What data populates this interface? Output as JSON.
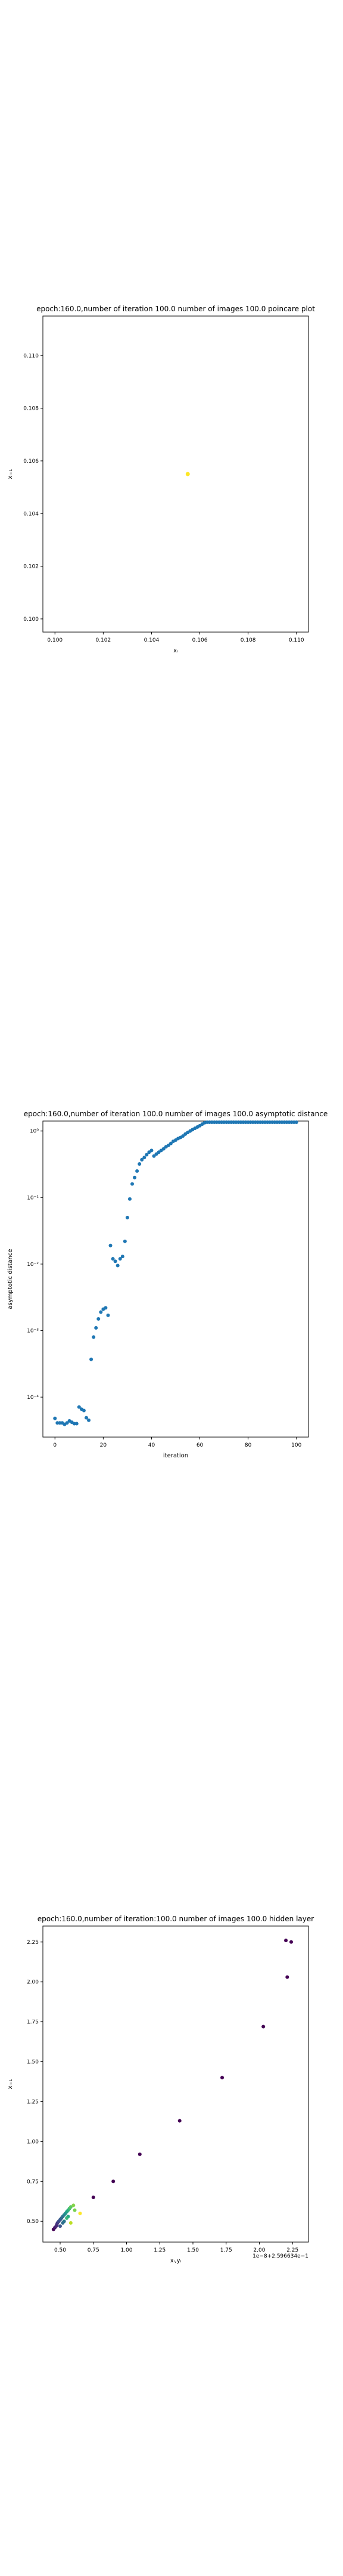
{
  "chart_data": [
    {
      "type": "scatter",
      "title": "epoch:160.0,number of iteration 100.0 number of images 100.0 poincare plot",
      "xlabel": "xᵢ",
      "ylabel": "xᵢ₊₁",
      "xlim": [
        0.0995,
        0.1105
      ],
      "ylim": [
        0.0995,
        0.1115
      ],
      "xticks": [
        0.1,
        0.102,
        0.104,
        0.106,
        0.108,
        0.11
      ],
      "xtick_labels": [
        "0.100",
        "0.102",
        "0.104",
        "0.106",
        "0.108",
        "0.110"
      ],
      "yticks": [
        0.1,
        0.102,
        0.104,
        0.106,
        0.108,
        0.11
      ],
      "ytick_labels": [
        "0.100",
        "0.102",
        "0.104",
        "0.106",
        "0.108",
        "0.110"
      ],
      "grid": false,
      "points": [
        {
          "x": 0.1055,
          "y": 0.1055,
          "color": "#fde725"
        }
      ]
    },
    {
      "type": "scatter",
      "title": "epoch:160.0,number of iteration 100.0  number of images 100.0 asymptotic distance",
      "xlabel": "iteration",
      "ylabel": "asymptotic distance",
      "yscale": "log",
      "xlim": [
        -5,
        105
      ],
      "ylim_log10": [
        -4.6,
        0.15
      ],
      "xticks": [
        0,
        20,
        40,
        60,
        80,
        100
      ],
      "xtick_labels": [
        "0",
        "20",
        "40",
        "60",
        "80",
        "100"
      ],
      "yticks_log10": [
        -4,
        -3,
        -2,
        -1,
        0
      ],
      "ytick_labels": [
        "10⁻⁴",
        "10⁻³",
        "10⁻²",
        "10⁻¹",
        "10⁰"
      ],
      "grid": false,
      "color": "#1f77b4",
      "x": [
        0,
        1,
        2,
        3,
        4,
        5,
        6,
        7,
        8,
        9,
        10,
        11,
        12,
        13,
        14,
        15,
        16,
        17,
        18,
        19,
        20,
        21,
        22,
        23,
        24,
        25,
        26,
        27,
        28,
        29,
        30,
        31,
        32,
        33,
        34,
        35,
        36,
        37,
        38,
        39,
        40,
        41,
        42,
        43,
        44,
        45,
        46,
        47,
        48,
        49,
        50,
        51,
        52,
        53,
        54,
        55,
        56,
        57,
        58,
        59,
        60,
        61,
        62,
        63,
        64,
        65,
        66,
        67,
        68,
        69,
        70,
        71,
        72,
        73,
        74,
        75,
        76,
        77,
        78,
        79,
        80,
        81,
        82,
        83,
        84,
        85,
        86,
        87,
        88,
        89,
        90,
        91,
        92,
        93,
        94,
        95,
        96,
        97,
        98,
        99,
        100
      ],
      "y": [
        4.8e-05,
        4.1e-05,
        4.1e-05,
        4.1e-05,
        3.9e-05,
        4.1e-05,
        4.4e-05,
        4.2e-05,
        4e-05,
        4e-05,
        7.1e-05,
        6.6e-05,
        6.3e-05,
        4.9e-05,
        4.5e-05,
        0.00037,
        0.0008,
        0.0011,
        0.0015,
        0.0019,
        0.0021,
        0.0022,
        0.0017,
        0.019,
        0.012,
        0.011,
        0.0095,
        0.012,
        0.013,
        0.022,
        0.05,
        0.095,
        0.16,
        0.2,
        0.25,
        0.32,
        0.37,
        0.4,
        0.44,
        0.48,
        0.51,
        0.42,
        0.45,
        0.48,
        0.51,
        0.54,
        0.58,
        0.61,
        0.65,
        0.7,
        0.73,
        0.77,
        0.8,
        0.84,
        0.9,
        0.95,
        1.0,
        1.05,
        1.1,
        1.15,
        1.2,
        1.27,
        1.33,
        1.38,
        1.42,
        1.46,
        1.5,
        1.54,
        1.58,
        1.61,
        1.64,
        1.66,
        1.68,
        1.69,
        1.7,
        1.72,
        1.78,
        1.85,
        1.93,
        2.02,
        2.12,
        2.23,
        2.35,
        2.48,
        2.62,
        2.77,
        2.93,
        3.1,
        3.28,
        3.47,
        3.66,
        3.86,
        4.07,
        4.29,
        4.52,
        4.75,
        4.99,
        5.24,
        5.5,
        5.77,
        6.05
      ]
    },
    {
      "type": "scatter",
      "title": "epoch:160.0,number of iteration:100.0  number of images 100.0 hidden layer",
      "xlabel": "xᵢ,yᵢ",
      "ylabel": "xᵢ₊₁",
      "xlim": [
        0.37,
        2.37
      ],
      "ylim": [
        0.37,
        2.35
      ],
      "xticks": [
        0.5,
        0.75,
        1.0,
        1.25,
        1.5,
        1.75,
        2.0,
        2.25
      ],
      "xtick_labels": [
        "0.50",
        "0.75",
        "1.00",
        "1.25",
        "1.50",
        "1.75",
        "2.00",
        "2.25"
      ],
      "yticks": [
        0.5,
        0.75,
        1.0,
        1.25,
        1.5,
        1.75,
        2.0,
        2.25
      ],
      "ytick_labels": [
        "0.50",
        "0.75",
        "1.00",
        "1.25",
        "1.50",
        "1.75",
        "2.00",
        "2.25"
      ],
      "x_offset_text": "1e−8+2.596634e−1",
      "grid": false,
      "points": [
        {
          "x": 0.45,
          "y": 0.45,
          "color": "#440154"
        },
        {
          "x": 0.46,
          "y": 0.46,
          "color": "#48186a"
        },
        {
          "x": 0.47,
          "y": 0.47,
          "color": "#482878"
        },
        {
          "x": 0.475,
          "y": 0.48,
          "color": "#472c7a"
        },
        {
          "x": 0.48,
          "y": 0.49,
          "color": "#443983"
        },
        {
          "x": 0.49,
          "y": 0.5,
          "color": "#3e4989"
        },
        {
          "x": 0.5,
          "y": 0.51,
          "color": "#38588c"
        },
        {
          "x": 0.51,
          "y": 0.52,
          "color": "#31688e"
        },
        {
          "x": 0.52,
          "y": 0.53,
          "color": "#2c728e"
        },
        {
          "x": 0.53,
          "y": 0.54,
          "color": "#26828e"
        },
        {
          "x": 0.54,
          "y": 0.55,
          "color": "#21918c"
        },
        {
          "x": 0.55,
          "y": 0.56,
          "color": "#1fa088"
        },
        {
          "x": 0.56,
          "y": 0.57,
          "color": "#28ae80"
        },
        {
          "x": 0.57,
          "y": 0.58,
          "color": "#3fbc73"
        },
        {
          "x": 0.58,
          "y": 0.59,
          "color": "#5ec962"
        },
        {
          "x": 0.6,
          "y": 0.6,
          "color": "#84d44b"
        },
        {
          "x": 0.5,
          "y": 0.47,
          "color": "#3b528b"
        },
        {
          "x": 0.53,
          "y": 0.5,
          "color": "#2a788e"
        },
        {
          "x": 0.56,
          "y": 0.53,
          "color": "#22a884"
        },
        {
          "x": 0.61,
          "y": 0.57,
          "color": "#7ad151"
        },
        {
          "x": 0.65,
          "y": 0.55,
          "color": "#fde725"
        },
        {
          "x": 0.58,
          "y": 0.49,
          "color": "#bddf26"
        },
        {
          "x": 0.55,
          "y": 0.52,
          "color": "#35b779"
        },
        {
          "x": 0.52,
          "y": 0.49,
          "color": "#2e6f8e"
        },
        {
          "x": 0.75,
          "y": 0.65,
          "color": "#440154"
        },
        {
          "x": 0.9,
          "y": 0.75,
          "color": "#440154"
        },
        {
          "x": 1.1,
          "y": 0.92,
          "color": "#440154"
        },
        {
          "x": 1.4,
          "y": 1.13,
          "color": "#440154"
        },
        {
          "x": 1.72,
          "y": 1.4,
          "color": "#440154"
        },
        {
          "x": 2.03,
          "y": 1.72,
          "color": "#440154"
        },
        {
          "x": 2.21,
          "y": 2.03,
          "color": "#440154"
        },
        {
          "x": 2.2,
          "y": 2.26,
          "color": "#440154"
        },
        {
          "x": 2.24,
          "y": 2.25,
          "color": "#440154"
        }
      ]
    }
  ]
}
